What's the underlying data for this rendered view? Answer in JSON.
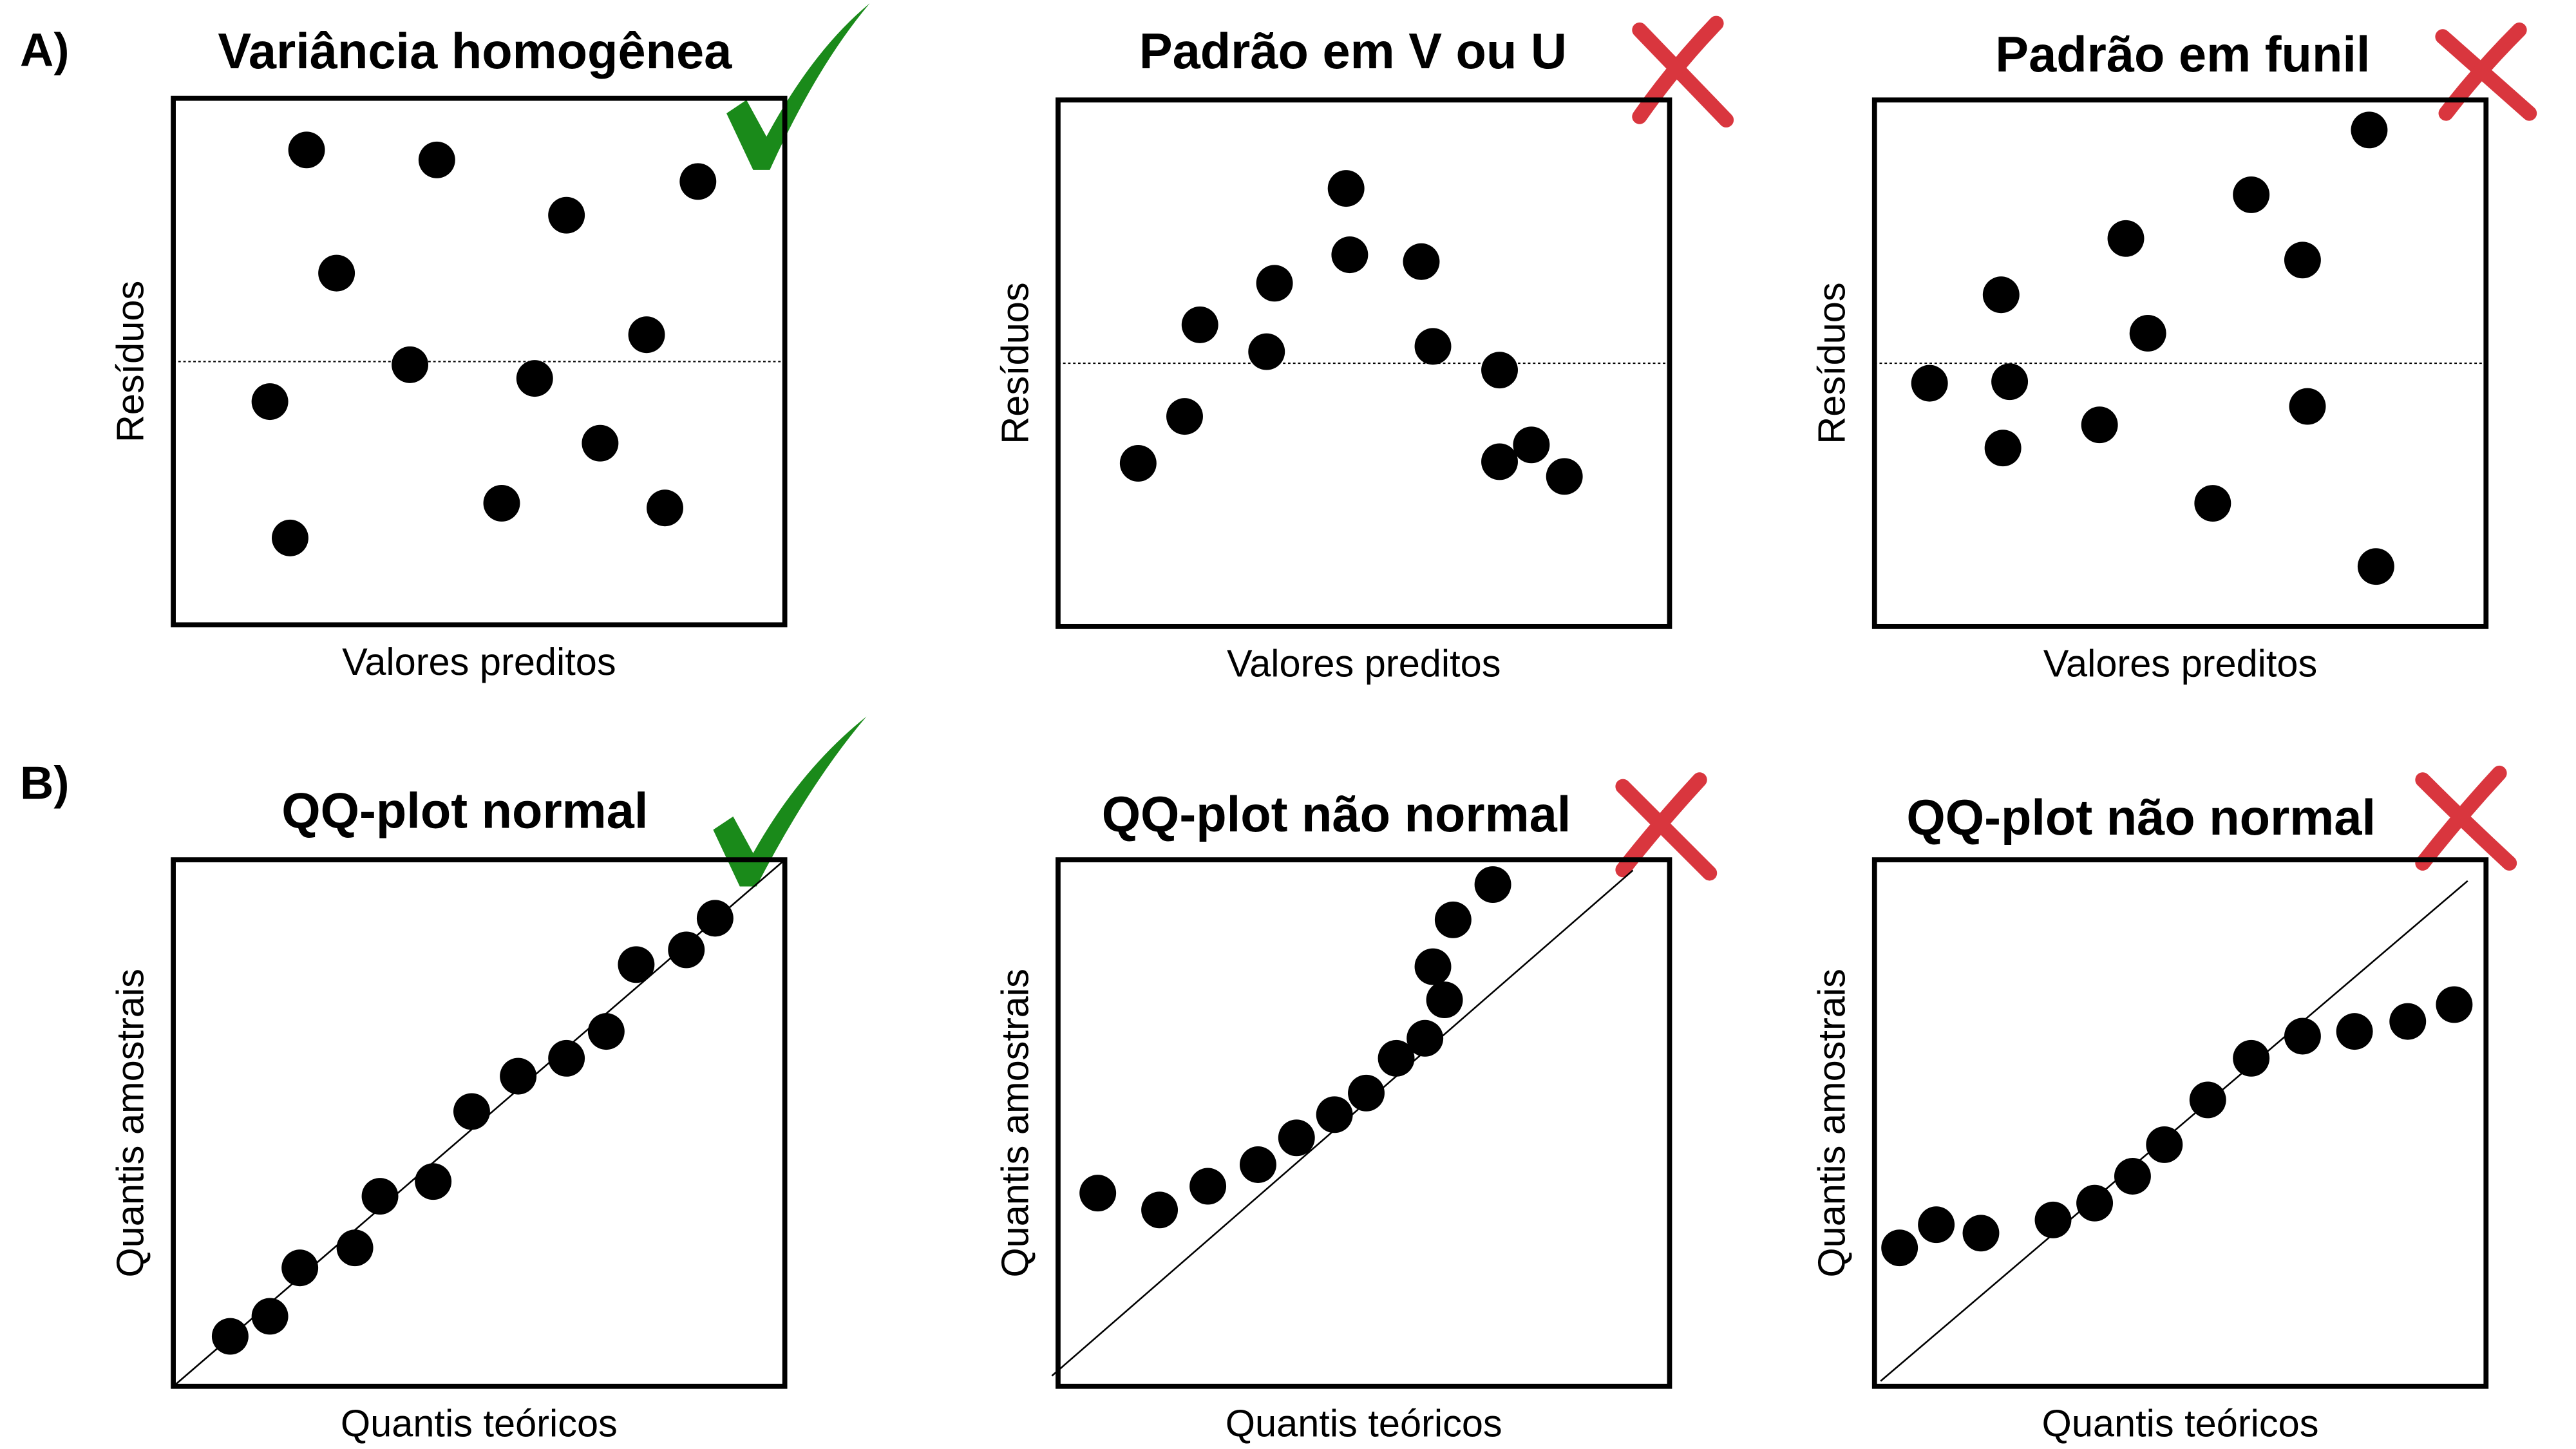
{
  "labels": [
    "A)",
    "B)"
  ],
  "chart_data": [
    {
      "type": "scatter",
      "title": "Variância homogênea",
      "x_label": "Valores preditos",
      "y_label": "Resíduos",
      "xlim": [
        0,
        100
      ],
      "ylim": [
        0,
        100
      ],
      "ref_line": {
        "x": [
          0,
          100
        ],
        "y": [
          50,
          50
        ],
        "style": "dotted"
      },
      "x": [
        21.8,
        43.1,
        26.7,
        64.3,
        85.8,
        38.7,
        59.1,
        77.4,
        15.8,
        69.8,
        53.7,
        80.4,
        19.1
      ],
      "y": [
        90.2,
        88.3,
        66.8,
        77.8,
        84.2,
        49.4,
        46.8,
        55.1,
        42.4,
        34.5,
        23.1,
        22.2,
        16.5
      ]
    },
    {
      "type": "scatter",
      "title": "Padrão em V ou U",
      "x_label": "Valores preditos",
      "y_label": "Resíduos",
      "xlim": [
        0,
        100
      ],
      "ylim": [
        0,
        100
      ],
      "ref_line": {
        "x": [
          0,
          100
        ],
        "y": [
          50,
          50
        ],
        "style": "dotted"
      },
      "x": [
        13.1,
        20.7,
        23.2,
        34.1,
        35.4,
        47.1,
        47.7,
        59.4,
        61.3,
        72.2,
        72.2,
        77.4,
        82.8
      ],
      "y": [
        31.0,
        39.9,
        57.3,
        52.2,
        65.2,
        83.2,
        70.6,
        69.3,
        53.2,
        48.7,
        31.3,
        34.5,
        28.5
      ]
    },
    {
      "type": "scatter",
      "title": "Padrão em funil",
      "x_label": "Valores preditos",
      "y_label": "Resíduos",
      "xlim": [
        0,
        100
      ],
      "ylim": [
        0,
        100
      ],
      "ref_line": {
        "x": [
          0,
          100
        ],
        "y": [
          50,
          50
        ],
        "style": "dotted"
      },
      "x": [
        9.0,
        20.7,
        22.1,
        21.0,
        36.8,
        41.1,
        44.7,
        55.3,
        61.6,
        70.0,
        70.8,
        80.9,
        82.0
      ],
      "y": [
        46.2,
        63.0,
        46.5,
        33.9,
        38.3,
        73.7,
        55.7,
        23.4,
        82.0,
        69.6,
        41.8,
        94.3,
        11.4
      ]
    },
    {
      "type": "scatter",
      "title": "QQ-plot normal",
      "x_label": "Quantis teóricos",
      "y_label": "Quantis amostrais",
      "xlim": [
        0,
        100
      ],
      "ylim": [
        0,
        100
      ],
      "ref_line": {
        "x": [
          0,
          100
        ],
        "y": [
          0,
          100
        ],
        "style": "solid"
      },
      "x": [
        9.3,
        15.8,
        20.7,
        29.7,
        33.8,
        42.5,
        48.8,
        56.4,
        64.3,
        70.8,
        75.7,
        83.9,
        88.6
      ],
      "y": [
        9.5,
        13.3,
        22.5,
        26.3,
        36.1,
        38.9,
        52.2,
        58.9,
        62.3,
        67.4,
        80.1,
        82.9,
        88.9
      ]
    },
    {
      "type": "scatter",
      "title": "QQ-plot não normal",
      "x_label": "Quantis teóricos",
      "y_label": "Quantis amostrais",
      "xlim": [
        0,
        100
      ],
      "ylim": [
        0,
        100
      ],
      "ref_line": {
        "x": [
          -1,
          94
        ],
        "y": [
          2,
          98
        ],
        "style": "solid"
      },
      "x": [
        6.5,
        16.6,
        24.5,
        32.7,
        39.0,
        45.2,
        50.4,
        55.3,
        60.0,
        63.2,
        61.3,
        64.6,
        71.1
      ],
      "y": [
        36.7,
        33.5,
        38.0,
        42.1,
        47.2,
        51.6,
        55.7,
        62.3,
        66.1,
        73.4,
        79.7,
        88.6,
        95.3
      ]
    },
    {
      "type": "scatter",
      "title": "QQ-plot não normal",
      "x_label": "Quantis teóricos",
      "y_label": "Quantis amostrais",
      "xlim": [
        0,
        100
      ],
      "ylim": [
        0,
        100
      ],
      "ref_line": {
        "x": [
          1,
          97
        ],
        "y": [
          1,
          96
        ],
        "style": "solid"
      },
      "x": [
        4.1,
        10.1,
        17.4,
        29.2,
        36.0,
        42.2,
        47.4,
        54.5,
        61.6,
        70.0,
        78.5,
        87.2,
        94.8
      ],
      "y": [
        26.3,
        30.7,
        29.1,
        31.6,
        34.8,
        39.9,
        45.9,
        54.4,
        62.3,
        66.5,
        67.4,
        69.3,
        72.5
      ]
    }
  ]
}
